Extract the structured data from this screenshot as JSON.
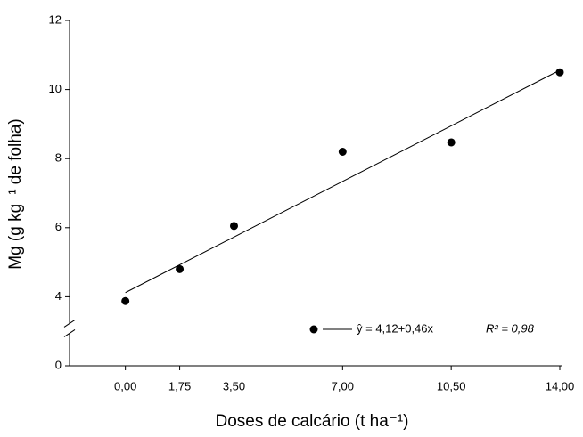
{
  "chart_data": {
    "type": "scatter",
    "x_label": "Doses de calcário (t ha⁻¹)",
    "y_label": "Mg (g kg⁻¹ de folha)",
    "series": [
      {
        "name": "ŷ = 4,12+0,46x",
        "color": "#000000",
        "x": [
          0,
          1.75,
          3.5,
          7,
          10.5,
          14
        ],
        "values": [
          3.75,
          4.8,
          6.05,
          8.2,
          8.47,
          10.5
        ]
      }
    ],
    "fit": {
      "intercept": 4.12,
      "slope": 0.46,
      "r2_label": "R² = 0,98"
    },
    "xlim": [
      -1.8,
      14
    ],
    "xticks": [
      {
        "value": 0,
        "label": "0,00"
      },
      {
        "value": 1.75,
        "label": "1,75"
      },
      {
        "value": 3.5,
        "label": "3,50"
      },
      {
        "value": 7,
        "label": "7,00"
      },
      {
        "value": 10.5,
        "label": "10,50"
      },
      {
        "value": 14,
        "label": "14,00"
      }
    ],
    "ylim": [
      0,
      12
    ],
    "yticks": [
      0,
      4,
      6,
      8,
      10,
      12
    ],
    "y_axis_break": true,
    "grid": false
  }
}
